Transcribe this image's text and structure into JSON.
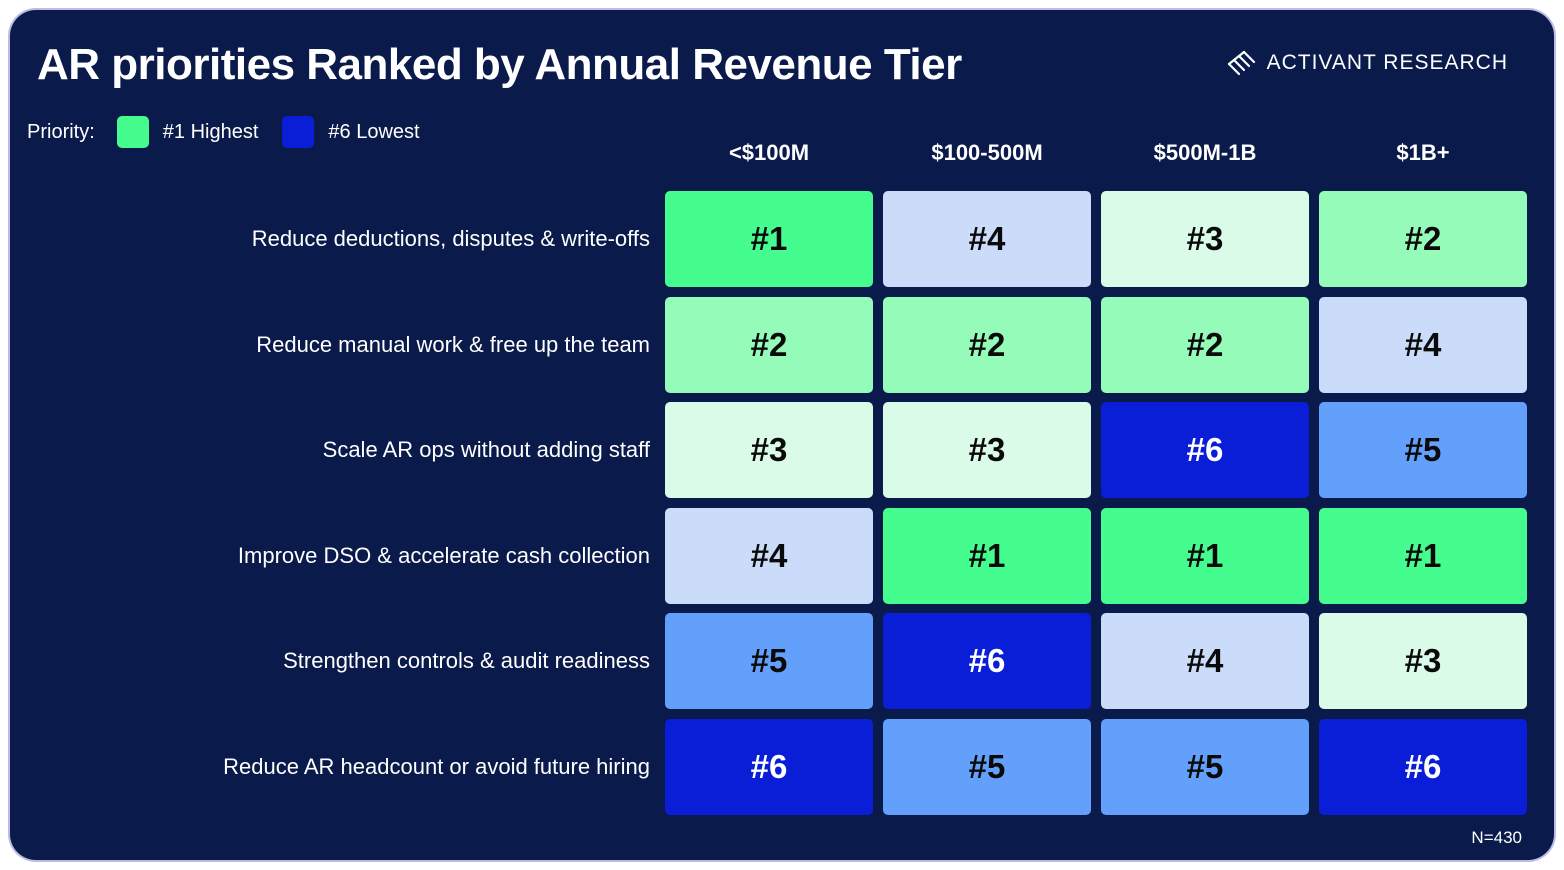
{
  "title": "AR priorities Ranked by Annual Revenue Tier",
  "brand": {
    "name": "ACTIVANT RESEARCH",
    "icon": "activant-stripes-logo-icon"
  },
  "legend": {
    "label": "Priority:",
    "items": [
      {
        "label": "#1 Highest",
        "color": "#45fd8e"
      },
      {
        "label": "#6 Lowest",
        "color": "#0a1ed8"
      }
    ]
  },
  "sample_note": "N=430",
  "rank_colors": {
    "1": {
      "bg": "#45fd8e",
      "fg": "#0a0a0a"
    },
    "2": {
      "bg": "#94fbb9",
      "fg": "#0a0a0a"
    },
    "3": {
      "bg": "#d9fbe7",
      "fg": "#0a0a0a"
    },
    "4": {
      "bg": "#cbdcfa",
      "fg": "#0a0a0a"
    },
    "5": {
      "bg": "#63a0fb",
      "fg": "#0a0a0a"
    },
    "6": {
      "bg": "#0a1ed8",
      "fg": "#ffffff"
    }
  },
  "chart_data": {
    "type": "heatmap",
    "title": "AR priorities Ranked by Annual Revenue Tier",
    "columns": [
      "<$100M",
      "$100-500M",
      "$500M-1B",
      "$1B+"
    ],
    "rows": [
      "Reduce deductions, disputes & write-offs",
      "Reduce manual work & free up the team",
      "Scale AR ops without adding staff",
      "Improve DSO & accelerate cash collection",
      "Strengthen controls & audit readiness",
      "Reduce AR headcount or avoid future hiring"
    ],
    "values": [
      [
        1,
        4,
        3,
        2
      ],
      [
        2,
        2,
        2,
        4
      ],
      [
        3,
        3,
        6,
        5
      ],
      [
        4,
        1,
        1,
        1
      ],
      [
        5,
        6,
        4,
        3
      ],
      [
        6,
        5,
        5,
        6
      ]
    ],
    "value_prefix": "#"
  }
}
